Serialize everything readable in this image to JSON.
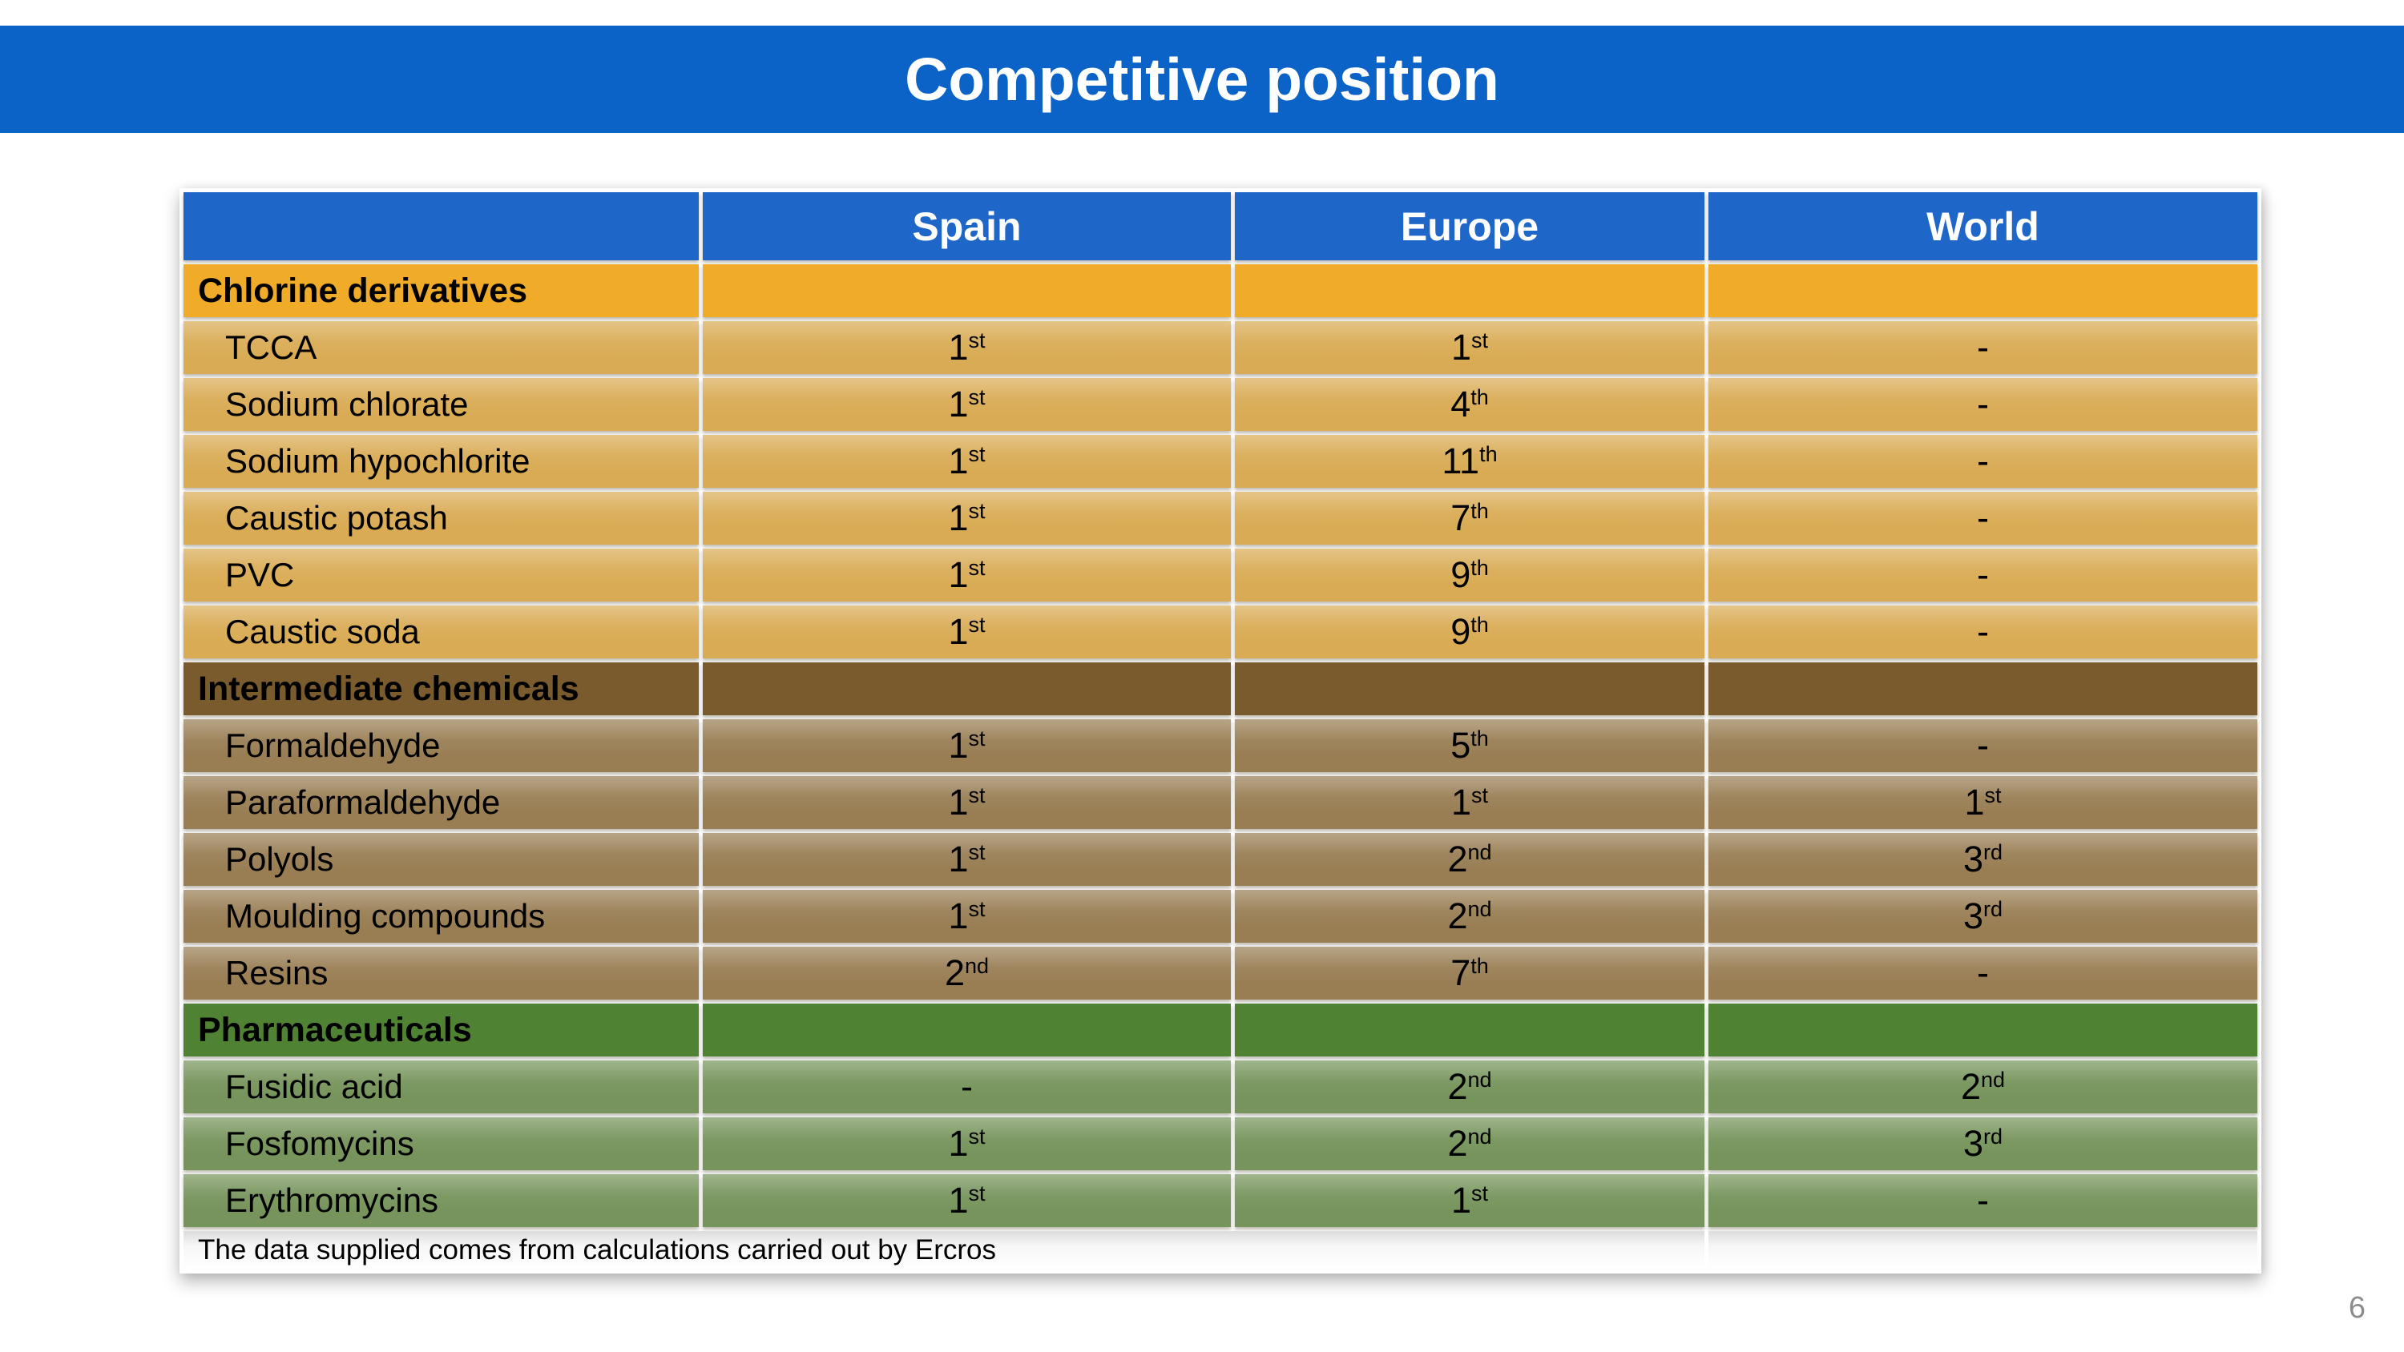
{
  "slide": {
    "title": "Competitive position",
    "footnote": "The data supplied comes from calculations carried out by Ercros",
    "page_number": "6"
  },
  "table": {
    "columns": [
      "",
      "Spain",
      "Europe",
      "World"
    ],
    "sections": [
      {
        "label": "Chlorine derivatives",
        "theme": "orange",
        "rows": [
          {
            "label": "TCCA",
            "spain": "1st",
            "europe": "1st",
            "world": "-"
          },
          {
            "label": "Sodium chlorate",
            "spain": "1st",
            "europe": "4th",
            "world": "-"
          },
          {
            "label": "Sodium hypochlorite",
            "spain": "1st",
            "europe": "11th",
            "world": "-"
          },
          {
            "label": "Caustic potash",
            "spain": "1st",
            "europe": "7th",
            "world": "-"
          },
          {
            "label": "PVC",
            "spain": "1st",
            "europe": "9th",
            "world": "-"
          },
          {
            "label": "Caustic soda",
            "spain": "1st",
            "europe": "9th",
            "world": "-"
          }
        ]
      },
      {
        "label": "Intermediate chemicals",
        "theme": "brown",
        "rows": [
          {
            "label": "Formaldehyde",
            "spain": "1st",
            "europe": "5th",
            "world": "-"
          },
          {
            "label": "Paraformaldehyde",
            "spain": "1st",
            "europe": "1st",
            "world": "1st"
          },
          {
            "label": "Polyols",
            "spain": "1st",
            "europe": "2nd",
            "world": "3rd"
          },
          {
            "label": "Moulding compounds",
            "spain": "1st",
            "europe": "2nd",
            "world": "3rd"
          },
          {
            "label": "Resins",
            "spain": "2nd",
            "europe": "7th",
            "world": "-"
          }
        ]
      },
      {
        "label": "Pharmaceuticals",
        "theme": "green",
        "rows": [
          {
            "label": "Fusidic acid",
            "spain": "-",
            "europe": "2nd",
            "world": "2nd"
          },
          {
            "label": "Fosfomycins",
            "spain": "1st",
            "europe": "2nd",
            "world": "3rd"
          },
          {
            "label": "Erythromycins",
            "spain": "1st",
            "europe": "1st",
            "world": "-"
          }
        ]
      }
    ]
  },
  "colors": {
    "accent_blue": "#0B63C8",
    "header_blue": "#1E66C7",
    "orange_header": "#F0AC28",
    "orange_row": "#D9AB54",
    "brown_header": "#7A5B2D",
    "brown_row": "#997E54",
    "green_header": "#4F8233",
    "green_row": "#76945B",
    "page_number_gray": "#8C8C8C"
  }
}
